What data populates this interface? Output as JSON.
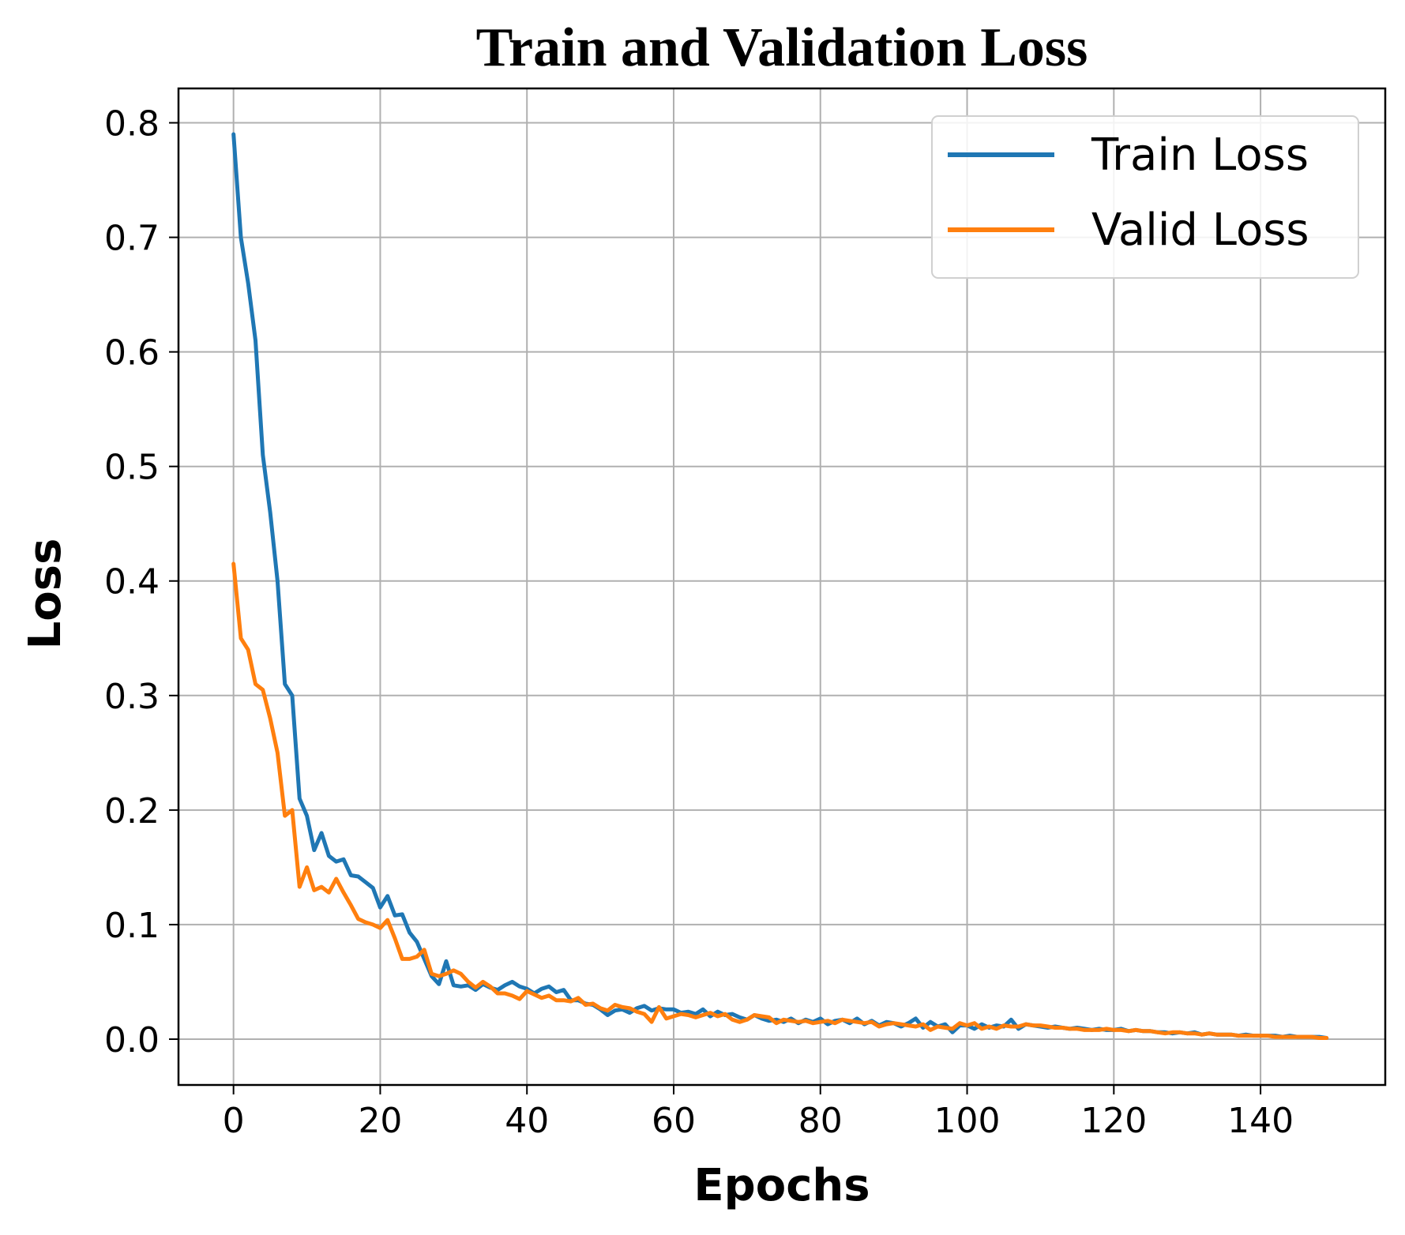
{
  "chart_data": {
    "type": "line",
    "title": "Train and Validation Loss",
    "xlabel": "Epochs",
    "ylabel": "Loss",
    "xlim": [
      -7.5,
      157
    ],
    "ylim": [
      -0.04,
      0.83
    ],
    "xticks": [
      0,
      20,
      40,
      60,
      80,
      100,
      120,
      140
    ],
    "xtick_labels": [
      "0",
      "20",
      "40",
      "60",
      "80",
      "100",
      "120",
      "140"
    ],
    "yticks": [
      0.0,
      0.1,
      0.2,
      0.3,
      0.4,
      0.5,
      0.6,
      0.7,
      0.8
    ],
    "ytick_labels": [
      "0.0",
      "0.1",
      "0.2",
      "0.3",
      "0.4",
      "0.5",
      "0.6",
      "0.7",
      "0.8"
    ],
    "grid": true,
    "legend_position": "top-right",
    "series": [
      {
        "name": "Train Loss",
        "color": "#1f77b4",
        "points": [
          [
            0,
            0.79
          ],
          [
            1,
            0.7
          ],
          [
            2,
            0.66
          ],
          [
            3,
            0.61
          ],
          [
            4,
            0.51
          ],
          [
            5,
            0.46
          ],
          [
            6,
            0.4
          ],
          [
            7,
            0.31
          ],
          [
            8,
            0.3
          ],
          [
            9,
            0.21
          ],
          [
            10,
            0.195
          ],
          [
            11,
            0.165
          ],
          [
            12,
            0.18
          ],
          [
            13,
            0.16
          ],
          [
            14,
            0.155
          ],
          [
            15,
            0.157
          ],
          [
            16,
            0.143
          ],
          [
            17,
            0.142
          ],
          [
            18,
            0.137
          ],
          [
            19,
            0.132
          ],
          [
            20,
            0.115
          ],
          [
            21,
            0.125
          ],
          [
            22,
            0.108
          ],
          [
            23,
            0.109
          ],
          [
            24,
            0.093
          ],
          [
            25,
            0.085
          ],
          [
            26,
            0.07
          ],
          [
            27,
            0.055
          ],
          [
            28,
            0.048
          ],
          [
            29,
            0.068
          ],
          [
            30,
            0.047
          ],
          [
            31,
            0.046
          ],
          [
            32,
            0.047
          ],
          [
            33,
            0.043
          ],
          [
            34,
            0.048
          ],
          [
            35,
            0.045
          ],
          [
            36,
            0.043
          ],
          [
            37,
            0.047
          ],
          [
            38,
            0.05
          ],
          [
            39,
            0.046
          ],
          [
            40,
            0.044
          ],
          [
            41,
            0.04
          ],
          [
            42,
            0.044
          ],
          [
            43,
            0.046
          ],
          [
            44,
            0.041
          ],
          [
            45,
            0.043
          ],
          [
            46,
            0.034
          ],
          [
            47,
            0.034
          ],
          [
            48,
            0.031
          ],
          [
            49,
            0.03
          ],
          [
            50,
            0.026
          ],
          [
            51,
            0.021
          ],
          [
            52,
            0.025
          ],
          [
            53,
            0.026
          ],
          [
            54,
            0.023
          ],
          [
            55,
            0.027
          ],
          [
            56,
            0.029
          ],
          [
            57,
            0.025
          ],
          [
            58,
            0.027
          ],
          [
            59,
            0.026
          ],
          [
            60,
            0.026
          ],
          [
            61,
            0.023
          ],
          [
            62,
            0.024
          ],
          [
            63,
            0.022
          ],
          [
            64,
            0.026
          ],
          [
            65,
            0.02
          ],
          [
            66,
            0.024
          ],
          [
            67,
            0.021
          ],
          [
            68,
            0.022
          ],
          [
            69,
            0.019
          ],
          [
            70,
            0.017
          ],
          [
            71,
            0.021
          ],
          [
            72,
            0.018
          ],
          [
            73,
            0.016
          ],
          [
            74,
            0.017
          ],
          [
            75,
            0.015
          ],
          [
            76,
            0.018
          ],
          [
            77,
            0.014
          ],
          [
            78,
            0.017
          ],
          [
            79,
            0.015
          ],
          [
            80,
            0.018
          ],
          [
            81,
            0.013
          ],
          [
            82,
            0.016
          ],
          [
            83,
            0.017
          ],
          [
            84,
            0.014
          ],
          [
            85,
            0.018
          ],
          [
            86,
            0.013
          ],
          [
            87,
            0.016
          ],
          [
            88,
            0.012
          ],
          [
            89,
            0.015
          ],
          [
            90,
            0.014
          ],
          [
            91,
            0.011
          ],
          [
            92,
            0.014
          ],
          [
            93,
            0.018
          ],
          [
            94,
            0.01
          ],
          [
            95,
            0.015
          ],
          [
            96,
            0.011
          ],
          [
            97,
            0.013
          ],
          [
            98,
            0.006
          ],
          [
            99,
            0.012
          ],
          [
            100,
            0.012
          ],
          [
            101,
            0.009
          ],
          [
            102,
            0.013
          ],
          [
            103,
            0.01
          ],
          [
            104,
            0.012
          ],
          [
            105,
            0.011
          ],
          [
            106,
            0.017
          ],
          [
            107,
            0.009
          ],
          [
            108,
            0.013
          ],
          [
            109,
            0.012
          ],
          [
            110,
            0.011
          ],
          [
            111,
            0.01
          ],
          [
            112,
            0.011
          ],
          [
            113,
            0.01
          ],
          [
            114,
            0.009
          ],
          [
            115,
            0.01
          ],
          [
            116,
            0.009
          ],
          [
            117,
            0.008
          ],
          [
            118,
            0.009
          ],
          [
            119,
            0.008
          ],
          [
            120,
            0.008
          ],
          [
            121,
            0.009
          ],
          [
            122,
            0.007
          ],
          [
            123,
            0.008
          ],
          [
            124,
            0.007
          ],
          [
            125,
            0.007
          ],
          [
            126,
            0.006
          ],
          [
            127,
            0.006
          ],
          [
            128,
            0.005
          ],
          [
            129,
            0.006
          ],
          [
            130,
            0.005
          ],
          [
            131,
            0.006
          ],
          [
            132,
            0.004
          ],
          [
            133,
            0.005
          ],
          [
            134,
            0.004
          ],
          [
            135,
            0.004
          ],
          [
            136,
            0.004
          ],
          [
            137,
            0.003
          ],
          [
            138,
            0.004
          ],
          [
            139,
            0.003
          ],
          [
            140,
            0.003
          ],
          [
            141,
            0.003
          ],
          [
            142,
            0.003
          ],
          [
            143,
            0.002
          ],
          [
            144,
            0.003
          ],
          [
            145,
            0.002
          ],
          [
            146,
            0.002
          ],
          [
            147,
            0.002
          ],
          [
            148,
            0.002
          ],
          [
            149,
            0.001
          ]
        ]
      },
      {
        "name": "Valid Loss",
        "color": "#ff7f0e",
        "points": [
          [
            0,
            0.415
          ],
          [
            1,
            0.35
          ],
          [
            2,
            0.34
          ],
          [
            3,
            0.31
          ],
          [
            4,
            0.305
          ],
          [
            5,
            0.28
          ],
          [
            6,
            0.25
          ],
          [
            7,
            0.195
          ],
          [
            8,
            0.2
          ],
          [
            9,
            0.133
          ],
          [
            10,
            0.15
          ],
          [
            11,
            0.13
          ],
          [
            12,
            0.133
          ],
          [
            13,
            0.128
          ],
          [
            14,
            0.14
          ],
          [
            15,
            0.128
          ],
          [
            16,
            0.117
          ],
          [
            17,
            0.105
          ],
          [
            18,
            0.102
          ],
          [
            19,
            0.1
          ],
          [
            20,
            0.097
          ],
          [
            21,
            0.104
          ],
          [
            22,
            0.088
          ],
          [
            23,
            0.07
          ],
          [
            24,
            0.07
          ],
          [
            25,
            0.072
          ],
          [
            26,
            0.078
          ],
          [
            27,
            0.057
          ],
          [
            28,
            0.055
          ],
          [
            29,
            0.057
          ],
          [
            30,
            0.06
          ],
          [
            31,
            0.057
          ],
          [
            32,
            0.05
          ],
          [
            33,
            0.045
          ],
          [
            34,
            0.05
          ],
          [
            35,
            0.046
          ],
          [
            36,
            0.04
          ],
          [
            37,
            0.04
          ],
          [
            38,
            0.038
          ],
          [
            39,
            0.035
          ],
          [
            40,
            0.042
          ],
          [
            41,
            0.039
          ],
          [
            42,
            0.036
          ],
          [
            43,
            0.038
          ],
          [
            44,
            0.034
          ],
          [
            45,
            0.034
          ],
          [
            46,
            0.033
          ],
          [
            47,
            0.036
          ],
          [
            48,
            0.03
          ],
          [
            49,
            0.031
          ],
          [
            50,
            0.027
          ],
          [
            51,
            0.025
          ],
          [
            52,
            0.03
          ],
          [
            53,
            0.028
          ],
          [
            54,
            0.027
          ],
          [
            55,
            0.024
          ],
          [
            56,
            0.022
          ],
          [
            57,
            0.015
          ],
          [
            58,
            0.028
          ],
          [
            59,
            0.018
          ],
          [
            60,
            0.02
          ],
          [
            61,
            0.022
          ],
          [
            62,
            0.021
          ],
          [
            63,
            0.019
          ],
          [
            64,
            0.021
          ],
          [
            65,
            0.023
          ],
          [
            66,
            0.02
          ],
          [
            67,
            0.022
          ],
          [
            68,
            0.017
          ],
          [
            69,
            0.015
          ],
          [
            70,
            0.017
          ],
          [
            71,
            0.021
          ],
          [
            72,
            0.02
          ],
          [
            73,
            0.019
          ],
          [
            74,
            0.014
          ],
          [
            75,
            0.017
          ],
          [
            76,
            0.016
          ],
          [
            77,
            0.015
          ],
          [
            78,
            0.016
          ],
          [
            79,
            0.014
          ],
          [
            80,
            0.015
          ],
          [
            81,
            0.016
          ],
          [
            82,
            0.014
          ],
          [
            83,
            0.017
          ],
          [
            84,
            0.016
          ],
          [
            85,
            0.015
          ],
          [
            86,
            0.014
          ],
          [
            87,
            0.015
          ],
          [
            88,
            0.011
          ],
          [
            89,
            0.013
          ],
          [
            90,
            0.014
          ],
          [
            91,
            0.013
          ],
          [
            92,
            0.012
          ],
          [
            93,
            0.011
          ],
          [
            94,
            0.013
          ],
          [
            95,
            0.008
          ],
          [
            96,
            0.011
          ],
          [
            97,
            0.01
          ],
          [
            98,
            0.009
          ],
          [
            99,
            0.014
          ],
          [
            100,
            0.012
          ],
          [
            101,
            0.014
          ],
          [
            102,
            0.009
          ],
          [
            103,
            0.011
          ],
          [
            104,
            0.009
          ],
          [
            105,
            0.012
          ],
          [
            106,
            0.011
          ],
          [
            107,
            0.011
          ],
          [
            108,
            0.013
          ],
          [
            109,
            0.012
          ],
          [
            110,
            0.012
          ],
          [
            111,
            0.011
          ],
          [
            112,
            0.01
          ],
          [
            113,
            0.01
          ],
          [
            114,
            0.009
          ],
          [
            115,
            0.009
          ],
          [
            116,
            0.008
          ],
          [
            117,
            0.008
          ],
          [
            118,
            0.008
          ],
          [
            119,
            0.009
          ],
          [
            120,
            0.008
          ],
          [
            121,
            0.008
          ],
          [
            122,
            0.007
          ],
          [
            123,
            0.008
          ],
          [
            124,
            0.007
          ],
          [
            125,
            0.007
          ],
          [
            126,
            0.006
          ],
          [
            127,
            0.005
          ],
          [
            128,
            0.006
          ],
          [
            129,
            0.006
          ],
          [
            130,
            0.005
          ],
          [
            131,
            0.005
          ],
          [
            132,
            0.004
          ],
          [
            133,
            0.005
          ],
          [
            134,
            0.004
          ],
          [
            135,
            0.004
          ],
          [
            136,
            0.004
          ],
          [
            137,
            0.003
          ],
          [
            138,
            0.003
          ],
          [
            139,
            0.003
          ],
          [
            140,
            0.003
          ],
          [
            141,
            0.003
          ],
          [
            142,
            0.002
          ],
          [
            143,
            0.002
          ],
          [
            144,
            0.002
          ],
          [
            145,
            0.002
          ],
          [
            146,
            0.002
          ],
          [
            147,
            0.002
          ],
          [
            148,
            0.001
          ],
          [
            149,
            0.001
          ]
        ]
      }
    ]
  }
}
